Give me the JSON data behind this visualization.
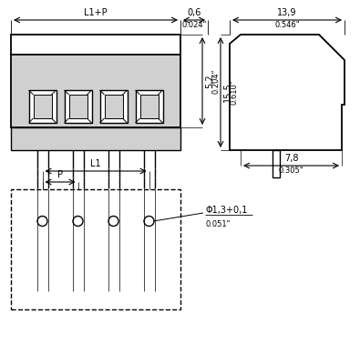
{
  "bg_color": "#ffffff",
  "line_color": "#000000",
  "gray_fill": "#d0d0d0",
  "dim_color": "#000000",
  "dimensions": {
    "L1P_label": "L1+P",
    "L1_label": "L1",
    "P_label": "P",
    "d06": "0,6",
    "d024": "0.024\"",
    "d52": "5,2",
    "d204": "0.204\"",
    "d139": "13,9",
    "d546": "0.546\"",
    "d155": "15,5",
    "d610": "0.610\"",
    "d78": "7,8",
    "d305": "0.305\"",
    "dphi": "Φ1,3+0,1",
    "d051": "0.051\""
  }
}
